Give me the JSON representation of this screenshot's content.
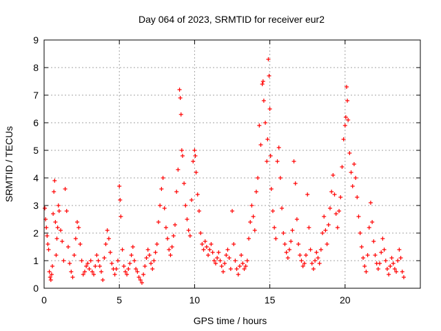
{
  "chart_data": {
    "type": "scatter",
    "title": "Day 064 of 2023, SRMTID for receiver eur2",
    "xlabel": "GPS time / hours",
    "ylabel": "SRMTID / TECUs",
    "xlim": [
      0,
      25
    ],
    "ylim": [
      0,
      9
    ],
    "xticks": [
      0,
      5,
      10,
      15,
      20
    ],
    "yticks": [
      0,
      1,
      2,
      3,
      4,
      5,
      6,
      7,
      8,
      9
    ],
    "grid": true,
    "marker": "+",
    "color": "#ff0000",
    "series": [
      {
        "name": "SRMTID",
        "points": [
          [
            0.05,
            2.9
          ],
          [
            0.1,
            2.5
          ],
          [
            0.15,
            2.2
          ],
          [
            0.2,
            1.9
          ],
          [
            0.25,
            1.6
          ],
          [
            0.3,
            1.4
          ],
          [
            0.35,
            0.6
          ],
          [
            0.4,
            0.4
          ],
          [
            0.45,
            0.3
          ],
          [
            0.5,
            0.5
          ],
          [
            0.55,
            0.8
          ],
          [
            0.6,
            2.7
          ],
          [
            0.65,
            3.5
          ],
          [
            0.7,
            3.9
          ],
          [
            0.75,
            2.4
          ],
          [
            0.8,
            1.2
          ],
          [
            0.85,
            1.8
          ],
          [
            0.9,
            2.2
          ],
          [
            0.95,
            3.0
          ],
          [
            1.0,
            2.8
          ],
          [
            1.1,
            2.1
          ],
          [
            1.2,
            1.7
          ],
          [
            1.3,
            1.0
          ],
          [
            1.4,
            3.6
          ],
          [
            1.5,
            2.8
          ],
          [
            1.6,
            1.5
          ],
          [
            1.7,
            0.9
          ],
          [
            1.8,
            0.6
          ],
          [
            1.9,
            0.4
          ],
          [
            2.0,
            1.2
          ],
          [
            2.1,
            1.8
          ],
          [
            2.2,
            2.4
          ],
          [
            2.3,
            2.2
          ],
          [
            2.4,
            1.6
          ],
          [
            2.5,
            1.0
          ],
          [
            2.6,
            0.5
          ],
          [
            2.7,
            0.6
          ],
          [
            2.8,
            0.8
          ],
          [
            2.9,
            0.9
          ],
          [
            3.0,
            0.7
          ],
          [
            3.1,
            1.0
          ],
          [
            3.2,
            0.6
          ],
          [
            3.3,
            0.5
          ],
          [
            3.4,
            0.8
          ],
          [
            3.5,
            1.2
          ],
          [
            3.6,
            1.0
          ],
          [
            3.7,
            0.8
          ],
          [
            3.8,
            0.6
          ],
          [
            3.9,
            0.3
          ],
          [
            4.0,
            1.1
          ],
          [
            4.1,
            1.6
          ],
          [
            4.2,
            2.1
          ],
          [
            4.3,
            1.8
          ],
          [
            4.4,
            1.3
          ],
          [
            4.5,
            0.9
          ],
          [
            4.6,
            0.7
          ],
          [
            4.7,
            0.5
          ],
          [
            4.8,
            0.7
          ],
          [
            4.9,
            1.0
          ],
          [
            5.0,
            3.7
          ],
          [
            5.05,
            3.2
          ],
          [
            5.1,
            2.6
          ],
          [
            5.2,
            1.4
          ],
          [
            5.3,
            0.8
          ],
          [
            5.4,
            0.6
          ],
          [
            5.5,
            0.5
          ],
          [
            5.6,
            0.7
          ],
          [
            5.7,
            0.9
          ],
          [
            5.8,
            1.2
          ],
          [
            5.9,
            1.5
          ],
          [
            6.0,
            1.0
          ],
          [
            6.1,
            0.7
          ],
          [
            6.2,
            0.6
          ],
          [
            6.3,
            0.4
          ],
          [
            6.4,
            0.3
          ],
          [
            6.5,
            0.2
          ],
          [
            6.6,
            0.5
          ],
          [
            6.7,
            0.8
          ],
          [
            6.8,
            1.1
          ],
          [
            6.9,
            1.4
          ],
          [
            7.0,
            1.2
          ],
          [
            7.1,
            0.9
          ],
          [
            7.2,
            0.7
          ],
          [
            7.3,
            1.0
          ],
          [
            7.4,
            1.3
          ],
          [
            7.5,
            1.6
          ],
          [
            7.6,
            2.4
          ],
          [
            7.7,
            3.0
          ],
          [
            7.8,
            3.6
          ],
          [
            7.9,
            4.0
          ],
          [
            8.0,
            2.9
          ],
          [
            8.1,
            2.2
          ],
          [
            8.2,
            1.8
          ],
          [
            8.3,
            1.4
          ],
          [
            8.4,
            1.2
          ],
          [
            8.5,
            1.5
          ],
          [
            8.6,
            1.9
          ],
          [
            8.7,
            2.3
          ],
          [
            8.8,
            3.5
          ],
          [
            8.9,
            4.3
          ],
          [
            9.0,
            7.2
          ],
          [
            9.05,
            6.9
          ],
          [
            9.1,
            6.3
          ],
          [
            9.15,
            5.0
          ],
          [
            9.2,
            4.8
          ],
          [
            9.3,
            3.8
          ],
          [
            9.4,
            3.0
          ],
          [
            9.5,
            2.5
          ],
          [
            9.6,
            2.1
          ],
          [
            9.7,
            1.9
          ],
          [
            9.8,
            3.2
          ],
          [
            9.9,
            4.6
          ],
          [
            10.0,
            5.0
          ],
          [
            10.05,
            4.8
          ],
          [
            10.1,
            4.2
          ],
          [
            10.2,
            3.4
          ],
          [
            10.3,
            2.8
          ],
          [
            10.4,
            2.0
          ],
          [
            10.5,
            1.6
          ],
          [
            10.6,
            1.4
          ],
          [
            10.7,
            1.7
          ],
          [
            10.8,
            1.5
          ],
          [
            10.9,
            1.2
          ],
          [
            11.0,
            1.4
          ],
          [
            11.1,
            1.6
          ],
          [
            11.2,
            1.3
          ],
          [
            11.3,
            1.0
          ],
          [
            11.4,
            0.9
          ],
          [
            11.5,
            1.1
          ],
          [
            11.6,
            1.3
          ],
          [
            11.7,
            1.0
          ],
          [
            11.8,
            0.8
          ],
          [
            11.9,
            0.6
          ],
          [
            12.0,
            0.9
          ],
          [
            12.1,
            1.2
          ],
          [
            12.2,
            1.4
          ],
          [
            12.3,
            1.1
          ],
          [
            12.4,
            0.7
          ],
          [
            12.5,
            2.8
          ],
          [
            12.6,
            1.6
          ],
          [
            12.7,
            1.0
          ],
          [
            12.8,
            0.7
          ],
          [
            12.9,
            0.5
          ],
          [
            13.0,
            0.8
          ],
          [
            13.1,
            1.2
          ],
          [
            13.2,
            0.9
          ],
          [
            13.3,
            0.7
          ],
          [
            13.4,
            0.8
          ],
          [
            13.5,
            1.0
          ],
          [
            13.6,
            1.8
          ],
          [
            13.7,
            2.4
          ],
          [
            13.8,
            3.0
          ],
          [
            13.9,
            2.6
          ],
          [
            14.0,
            2.1
          ],
          [
            14.1,
            3.5
          ],
          [
            14.2,
            4.0
          ],
          [
            14.3,
            5.9
          ],
          [
            14.4,
            5.2
          ],
          [
            14.5,
            7.4
          ],
          [
            14.55,
            7.5
          ],
          [
            14.6,
            6.8
          ],
          [
            14.7,
            6.0
          ],
          [
            14.8,
            4.6
          ],
          [
            14.85,
            5.4
          ],
          [
            14.9,
            8.3
          ],
          [
            14.95,
            7.7
          ],
          [
            15.0,
            6.5
          ],
          [
            15.05,
            4.8
          ],
          [
            15.1,
            3.6
          ],
          [
            15.2,
            2.8
          ],
          [
            15.3,
            2.2
          ],
          [
            15.4,
            1.8
          ],
          [
            15.5,
            4.6
          ],
          [
            15.6,
            5.1
          ],
          [
            15.7,
            4.0
          ],
          [
            15.8,
            2.9
          ],
          [
            15.9,
            2.0
          ],
          [
            16.0,
            1.6
          ],
          [
            16.1,
            1.3
          ],
          [
            16.2,
            1.1
          ],
          [
            16.3,
            1.4
          ],
          [
            16.4,
            1.7
          ],
          [
            16.5,
            2.1
          ],
          [
            16.6,
            4.6
          ],
          [
            16.7,
            3.8
          ],
          [
            16.8,
            2.5
          ],
          [
            16.9,
            1.6
          ],
          [
            17.0,
            1.2
          ],
          [
            17.1,
            1.0
          ],
          [
            17.2,
            0.8
          ],
          [
            17.3,
            0.9
          ],
          [
            17.4,
            1.2
          ],
          [
            17.5,
            3.4
          ],
          [
            17.6,
            2.2
          ],
          [
            17.7,
            1.4
          ],
          [
            17.8,
            0.9
          ],
          [
            17.9,
            0.7
          ],
          [
            18.0,
            1.0
          ],
          [
            18.1,
            1.3
          ],
          [
            18.2,
            1.1
          ],
          [
            18.3,
            0.9
          ],
          [
            18.4,
            1.4
          ],
          [
            18.5,
            2.0
          ],
          [
            18.6,
            2.6
          ],
          [
            18.7,
            2.1
          ],
          [
            18.8,
            1.6
          ],
          [
            18.9,
            2.3
          ],
          [
            19.0,
            2.9
          ],
          [
            19.1,
            3.5
          ],
          [
            19.2,
            4.1
          ],
          [
            19.3,
            3.4
          ],
          [
            19.4,
            2.7
          ],
          [
            19.5,
            2.2
          ],
          [
            19.6,
            2.8
          ],
          [
            19.7,
            3.3
          ],
          [
            19.8,
            4.4
          ],
          [
            19.9,
            5.4
          ],
          [
            20.0,
            5.9
          ],
          [
            20.05,
            6.2
          ],
          [
            20.1,
            7.3
          ],
          [
            20.15,
            6.8
          ],
          [
            20.2,
            6.1
          ],
          [
            20.3,
            4.9
          ],
          [
            20.4,
            4.2
          ],
          [
            20.5,
            3.7
          ],
          [
            20.6,
            4.5
          ],
          [
            20.7,
            4.0
          ],
          [
            20.8,
            3.3
          ],
          [
            20.9,
            2.6
          ],
          [
            21.0,
            2.0
          ],
          [
            21.1,
            1.5
          ],
          [
            21.2,
            1.1
          ],
          [
            21.3,
            0.8
          ],
          [
            21.4,
            0.6
          ],
          [
            21.5,
            1.2
          ],
          [
            21.6,
            2.2
          ],
          [
            21.7,
            3.1
          ],
          [
            21.8,
            2.4
          ],
          [
            21.9,
            1.7
          ],
          [
            22.0,
            1.2
          ],
          [
            22.1,
            0.9
          ],
          [
            22.2,
            0.7
          ],
          [
            22.3,
            0.9
          ],
          [
            22.4,
            1.3
          ],
          [
            22.5,
            1.8
          ],
          [
            22.6,
            1.4
          ],
          [
            22.7,
            1.0
          ],
          [
            22.8,
            0.7
          ],
          [
            22.9,
            0.5
          ],
          [
            23.0,
            0.8
          ],
          [
            23.1,
            1.1
          ],
          [
            23.2,
            0.9
          ],
          [
            23.3,
            0.7
          ],
          [
            23.4,
            0.6
          ],
          [
            23.5,
            1.0
          ],
          [
            23.6,
            1.4
          ],
          [
            23.7,
            1.1
          ],
          [
            23.8,
            0.6
          ],
          [
            23.9,
            0.4
          ]
        ]
      }
    ]
  }
}
